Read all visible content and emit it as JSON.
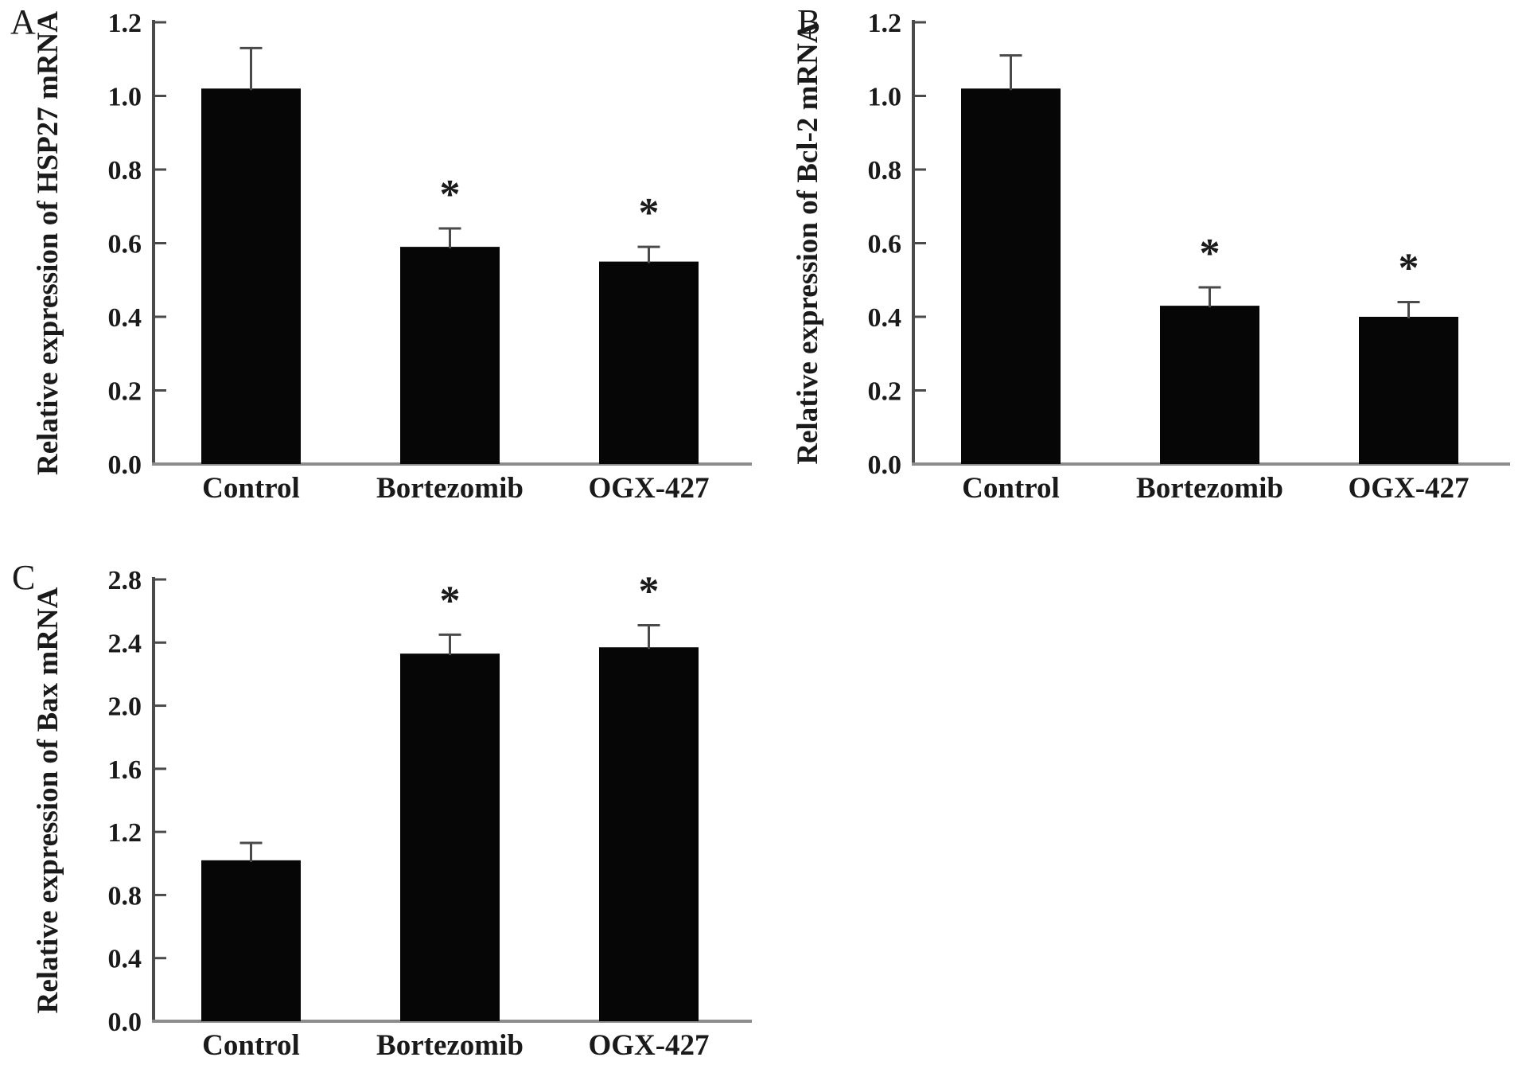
{
  "figure": {
    "background": "#ffffff",
    "bar_color": "#060606",
    "axis_color": "#4a4a4a",
    "baseline_color": "#8c8c8c",
    "error_color": "#4a4a4a",
    "text_color": "#1a1a1a",
    "marker_color": "#2e2e2e",
    "significance_marker": "*"
  },
  "chart_data": [
    {
      "type": "bar",
      "panel_label": "A",
      "ylabel": "Relative expression of HSP27 mRNA",
      "xlabel": "",
      "categories": [
        "Control",
        "Bortezomib",
        "OGX-427"
      ],
      "values": [
        1.02,
        0.59,
        0.55
      ],
      "errors": [
        0.11,
        0.05,
        0.04
      ],
      "significant": [
        false,
        true,
        true
      ],
      "ylim": [
        0,
        1.2
      ],
      "yticks": [
        0,
        0.2,
        0.4,
        0.6,
        0.8,
        1.0,
        1.2
      ],
      "ytick_labels": [
        "0.0",
        "0.2",
        "0.4",
        "0.6",
        "0.8",
        "1.0",
        "1.2"
      ],
      "grid": false,
      "legend": null
    },
    {
      "type": "bar",
      "panel_label": "B",
      "ylabel": "Relative expression of Bcl-2 mRNA",
      "xlabel": "",
      "categories": [
        "Control",
        "Bortezomib",
        "OGX-427"
      ],
      "values": [
        1.02,
        0.43,
        0.4
      ],
      "errors": [
        0.09,
        0.05,
        0.04
      ],
      "significant": [
        false,
        true,
        true
      ],
      "ylim": [
        0,
        1.2
      ],
      "yticks": [
        0,
        0.2,
        0.4,
        0.6,
        0.8,
        1.0,
        1.2
      ],
      "ytick_labels": [
        "0.0",
        "0.2",
        "0.4",
        "0.6",
        "0.8",
        "1.0",
        "1.2"
      ],
      "grid": false,
      "legend": null
    },
    {
      "type": "bar",
      "panel_label": "C",
      "ylabel": "Relative expression of Bax mRNA",
      "xlabel": "",
      "categories": [
        "Control",
        "Bortezomib",
        "OGX-427"
      ],
      "values": [
        1.02,
        2.33,
        2.37
      ],
      "errors": [
        0.11,
        0.12,
        0.14
      ],
      "significant": [
        false,
        true,
        true
      ],
      "ylim": [
        0,
        2.8
      ],
      "yticks": [
        0,
        0.4,
        0.8,
        1.2,
        1.6,
        2.0,
        2.4,
        2.8
      ],
      "ytick_labels": [
        "0.0",
        "0.4",
        "0.8",
        "1.2",
        "1.6",
        "2.0",
        "2.4",
        "2.8"
      ],
      "grid": false,
      "legend": null
    }
  ]
}
